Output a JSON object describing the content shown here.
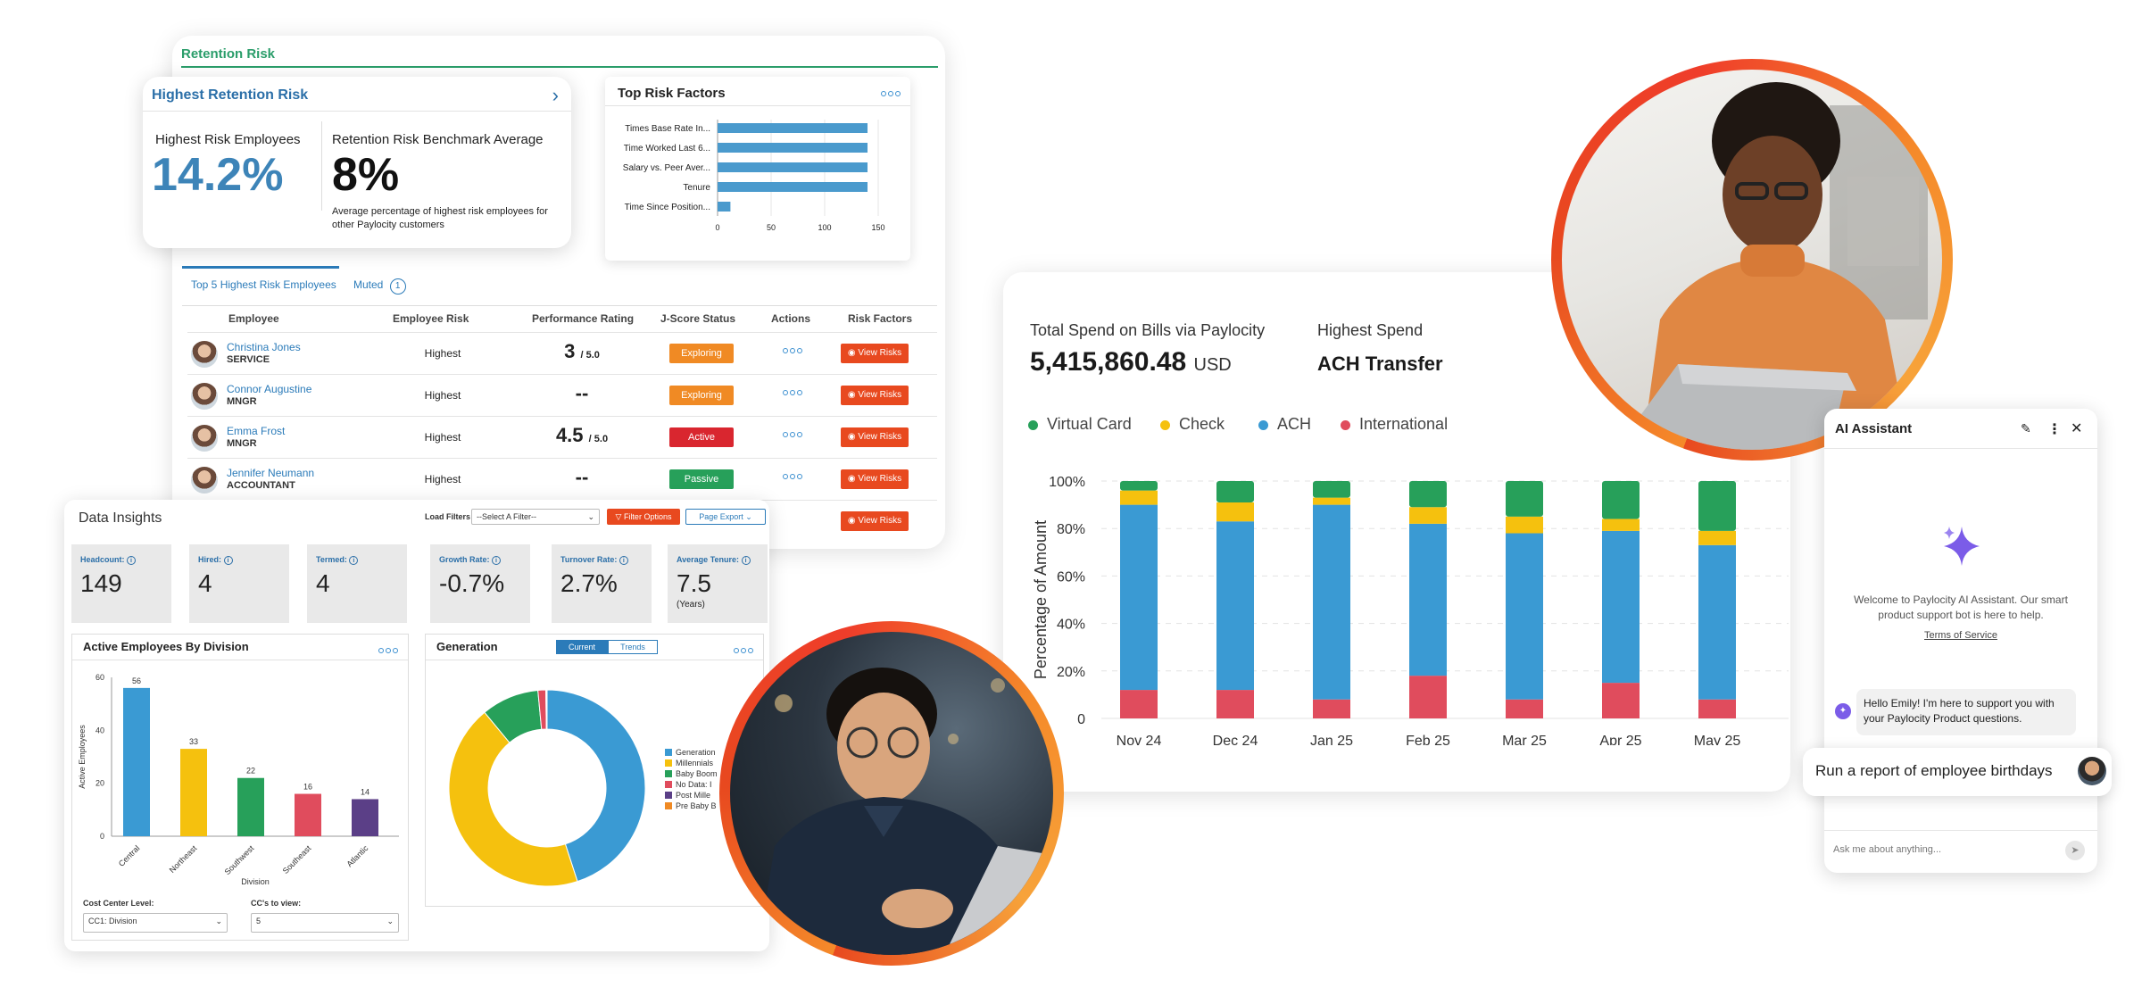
{
  "retention": {
    "title": "Retention Risk",
    "highest": {
      "header": "Highest Retention Risk",
      "employees_label": "Highest Risk Employees",
      "employees_value": "14.2%",
      "benchmark_label": "Retention Risk Benchmark Average",
      "benchmark_value": "8%",
      "benchmark_note": "Average percentage of highest risk employees for other Paylocity customers"
    },
    "top_risk": {
      "header": "Top Risk Factors",
      "bars": [
        {
          "label": "Times Base Rate In...",
          "value": 140
        },
        {
          "label": "Time Worked Last 6...",
          "value": 140
        },
        {
          "label": "Salary vs. Peer Aver...",
          "value": 140
        },
        {
          "label": "Tenure",
          "value": 140
        },
        {
          "label": "Time Since Position...",
          "value": 12
        }
      ],
      "ticks": [
        "0",
        "50",
        "100",
        "150"
      ],
      "xmax": 150
    },
    "tabs": {
      "top5": "Top 5 Highest Risk Employees",
      "muted": "Muted",
      "muted_count": "1"
    },
    "columns": [
      "Employee",
      "Employee Risk",
      "Performance Rating",
      "J-Score Status",
      "Actions",
      "Risk Factors"
    ],
    "rows": [
      {
        "name": "Christina Jones",
        "role": "SERVICE",
        "risk": "Highest",
        "rating": "3",
        "rating_max": "/ 5.0",
        "status": "Exploring",
        "status_color": "#f08a24",
        "view": "View Risks"
      },
      {
        "name": "Connor Augustine",
        "role": "MNGR",
        "risk": "Highest",
        "rating": "--",
        "rating_max": "",
        "status": "Exploring",
        "status_color": "#f08a24",
        "view": "View Risks"
      },
      {
        "name": "Emma Frost",
        "role": "MNGR",
        "risk": "Highest",
        "rating": "4.5",
        "rating_max": "/ 5.0",
        "status": "Active",
        "status_color": "#d9262f",
        "view": "View Risks"
      },
      {
        "name": "Jennifer Neumann",
        "role": "ACCOUNTANT",
        "risk": "Highest",
        "rating": "--",
        "rating_max": "",
        "status": "Passive",
        "status_color": "#27a05a",
        "view": "View Risks"
      },
      {
        "name": "",
        "role": "",
        "risk": "",
        "rating": "",
        "rating_max": "",
        "status": "",
        "status_color": "",
        "view": "View Risks"
      }
    ]
  },
  "insights": {
    "title": "Data Insights",
    "load_filters": "Load Filters",
    "select_filter": "--Select A Filter--",
    "filter_options": "Filter Options",
    "page_export": "Page Export",
    "stats": [
      {
        "label": "Headcount:",
        "value": "149",
        "sub": ""
      },
      {
        "label": "Hired:",
        "value": "4",
        "sub": ""
      },
      {
        "label": "Termed:",
        "value": "4",
        "sub": ""
      },
      {
        "label": "Growth Rate:",
        "value": "-0.7%",
        "sub": ""
      },
      {
        "label": "Turnover Rate:",
        "value": "2.7%",
        "sub": ""
      },
      {
        "label": "Average Tenure:",
        "value": "7.5",
        "sub": "(Years)"
      }
    ],
    "division_panel": {
      "title": "Active Employees By Division",
      "ylabel": "Active Employees",
      "xlabel": "Division",
      "yticks": [
        "60",
        "40",
        "20",
        "0"
      ],
      "cost_center_label": "Cost Center Level:",
      "cost_center_value": "CC1: Division",
      "ccs_label": "CC's to view:",
      "ccs_value": "5"
    },
    "generation_panel": {
      "title": "Generation",
      "tab_current": "Current",
      "tab_trends": "Trends",
      "legend": [
        "Generation",
        "Millennials",
        "Baby Boom",
        "No Data: I",
        "Post Mille",
        "Pre Baby B"
      ]
    }
  },
  "spend": {
    "total_label": "Total Spend on Bills via Paylocity",
    "total_value": "5,415,860.48",
    "currency": "USD",
    "highest_label": "Highest Spend",
    "highest_value": "ACH Transfer",
    "ylabel": "Percentage of Amount",
    "yticks": [
      "100%",
      "80%",
      "60%",
      "40%",
      "20%",
      "0"
    ]
  },
  "ai": {
    "title": "AI Assistant",
    "welcome": "Welcome to Paylocity AI Assistant. Our smart product support bot is here to help.",
    "terms": "Terms of Service",
    "message": "Hello Emily! I'm here to support you with your Paylocity Product questions.",
    "prompt": "Run a report of employee birthdays",
    "input_placeholder": "Ask me about anything..."
  },
  "colors": {
    "virtual": "#27a05a",
    "check": "#f5c10e",
    "ach": "#3a9ad3",
    "international": "#e04c5d",
    "orange": "#e8491f",
    "teal": "#2a9d6a",
    "blue": "#2b7bb9"
  },
  "chart_data": [
    {
      "type": "bar",
      "stacked": true,
      "title": "",
      "ylabel": "Percentage of Amount",
      "categories": [
        "Nov 24",
        "Dec 24",
        "Jan 25",
        "Feb 25",
        "Mar 25",
        "Apr 25",
        "May 25"
      ],
      "ylim": [
        0,
        100
      ],
      "legend_position": "top-left",
      "series": [
        {
          "name": "International",
          "color": "#e04c5d",
          "values": [
            12,
            12,
            8,
            18,
            8,
            15,
            8
          ]
        },
        {
          "name": "ACH",
          "color": "#3a9ad3",
          "values": [
            78,
            71,
            82,
            64,
            70,
            64,
            65
          ]
        },
        {
          "name": "Check",
          "color": "#f5c10e",
          "values": [
            6,
            8,
            3,
            7,
            7,
            5,
            6
          ]
        },
        {
          "name": "Virtual Card",
          "color": "#27a05a",
          "values": [
            4,
            9,
            7,
            11,
            15,
            16,
            21
          ]
        }
      ]
    },
    {
      "type": "bar",
      "title": "Active Employees By Division",
      "xlabel": "Division",
      "ylabel": "Active Employees",
      "categories": [
        "Central",
        "Northeast",
        "Southwest",
        "Southeast",
        "Atlantic"
      ],
      "values": [
        56,
        33,
        22,
        16,
        14
      ],
      "colors": [
        "#3a9ad3",
        "#f5c10e",
        "#27a05a",
        "#e04c5d",
        "#5b3f87"
      ],
      "ylim": [
        0,
        60
      ]
    },
    {
      "type": "pie",
      "title": "Generation",
      "donut": true,
      "labels": [
        "Generation",
        "Millennials",
        "Baby Boom",
        "No Data: I",
        "Post Mille",
        "Pre Baby B"
      ],
      "values": [
        45,
        44,
        9.5,
        1.3,
        0.1,
        0.1
      ],
      "colors": [
        "#3a9ad3",
        "#f5c10e",
        "#27a05a",
        "#e04c5d",
        "#5b3f87",
        "#f08a24"
      ]
    },
    {
      "type": "bar",
      "orientation": "horizontal",
      "title": "Top Risk Factors",
      "categories": [
        "Times Base Rate In...",
        "Time Worked Last 6...",
        "Salary vs. Peer Aver...",
        "Tenure",
        "Time Since Position..."
      ],
      "values": [
        140,
        140,
        140,
        140,
        12
      ],
      "xlim": [
        0,
        150
      ]
    }
  ]
}
